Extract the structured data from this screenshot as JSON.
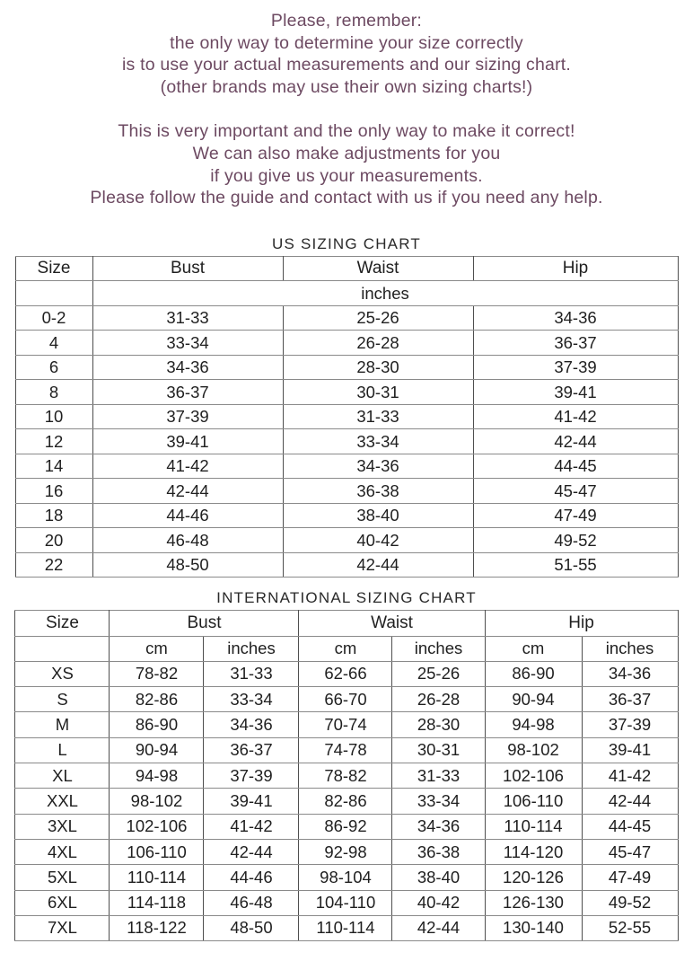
{
  "intro": {
    "para1_lines": [
      "Please, remember:",
      "the only way to determine your size correctly",
      "is to use your actual measurements and our sizing chart.",
      "(other brands may use their own sizing charts!)"
    ],
    "para2_lines": [
      "This is very important and the only way to make it correct!",
      "We can also make adjustments for you",
      "if you give us your measurements.",
      "Please follow the guide and contact with us if you need any help."
    ]
  },
  "us_chart": {
    "title": "US SIZING CHART",
    "headers": [
      "Size",
      "Bust",
      "Waist",
      "Hip"
    ],
    "unit_label": "inches",
    "rows": [
      [
        "0-2",
        "31-33",
        "25-26",
        "34-36"
      ],
      [
        "4",
        "33-34",
        "26-28",
        "36-37"
      ],
      [
        "6",
        "34-36",
        "28-30",
        "37-39"
      ],
      [
        "8",
        "36-37",
        "30-31",
        "39-41"
      ],
      [
        "10",
        "37-39",
        "31-33",
        "41-42"
      ],
      [
        "12",
        "39-41",
        "33-34",
        "42-44"
      ],
      [
        "14",
        "41-42",
        "34-36",
        "44-45"
      ],
      [
        "16",
        "42-44",
        "36-38",
        "45-47"
      ],
      [
        "18",
        "44-46",
        "38-40",
        "47-49"
      ],
      [
        "20",
        "46-48",
        "40-42",
        "49-52"
      ],
      [
        "22",
        "48-50",
        "42-44",
        "51-55"
      ]
    ]
  },
  "intl_chart": {
    "title": "INTERNATIONAL SIZING CHART",
    "headers": [
      "Size",
      "Bust",
      "Waist",
      "Hip"
    ],
    "subheaders": [
      "cm",
      "inches",
      "cm",
      "inches",
      "cm",
      "inches"
    ],
    "rows": [
      [
        "XS",
        "78-82",
        "31-33",
        "62-66",
        "25-26",
        "86-90",
        "34-36"
      ],
      [
        "S",
        "82-86",
        "33-34",
        "66-70",
        "26-28",
        "90-94",
        "36-37"
      ],
      [
        "M",
        "86-90",
        "34-36",
        "70-74",
        "28-30",
        "94-98",
        "37-39"
      ],
      [
        "L",
        "90-94",
        "36-37",
        "74-78",
        "30-31",
        "98-102",
        "39-41"
      ],
      [
        "XL",
        "94-98",
        "37-39",
        "78-82",
        "31-33",
        "102-106",
        "41-42"
      ],
      [
        "XXL",
        "98-102",
        "39-41",
        "82-86",
        "33-34",
        "106-110",
        "42-44"
      ],
      [
        "3XL",
        "102-106",
        "41-42",
        "86-92",
        "34-36",
        "110-114",
        "44-45"
      ],
      [
        "4XL",
        "106-110",
        "42-44",
        "92-98",
        "36-38",
        "114-120",
        "45-47"
      ],
      [
        "5XL",
        "110-114",
        "44-46",
        "98-104",
        "38-40",
        "120-126",
        "47-49"
      ],
      [
        "6XL",
        "114-118",
        "46-48",
        "104-110",
        "40-42",
        "126-130",
        "49-52"
      ],
      [
        "7XL",
        "118-122",
        "48-50",
        "110-114",
        "42-44",
        "130-140",
        "52-55"
      ]
    ]
  },
  "colors": {
    "intro_text": "#6d4a62",
    "heading_text": "#2a2a2a",
    "table_text": "#1f1f1f",
    "border_dark": "#4f4f4f",
    "border_light": "#8a8a8a",
    "background": "#ffffff"
  }
}
